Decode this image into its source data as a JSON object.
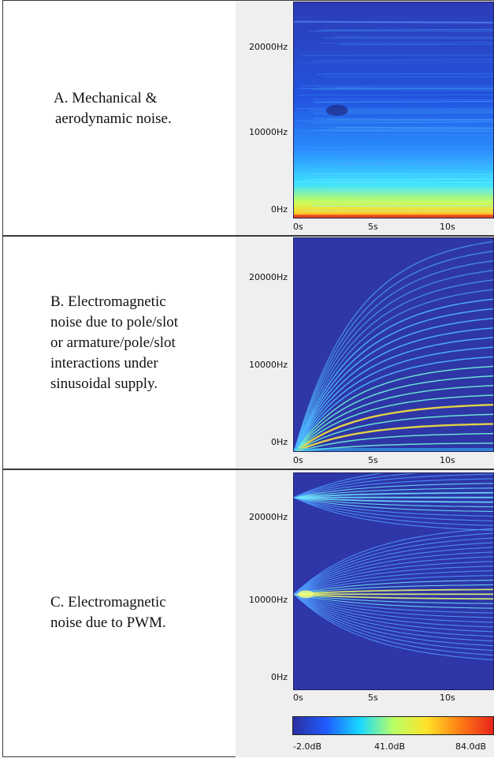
{
  "chart_data": [
    {
      "type": "heatmap",
      "label_text": [
        "A. Mechanical &",
        "aerodynamic noise."
      ],
      "yticks": [
        "20000Hz",
        "10000Hz",
        "0Hz"
      ],
      "xticks": [
        "0s",
        "5s",
        "10s"
      ],
      "ylim": [
        0,
        22500
      ],
      "xlim": [
        0,
        13.5
      ],
      "pattern": "broadband"
    },
    {
      "type": "heatmap",
      "label_text": [
        "B. Electromagnetic",
        "noise due to pole/slot",
        "or armature/pole/slot",
        "interactions under",
        "sinusoidal supply."
      ],
      "yticks": [
        "20000Hz",
        "10000Hz",
        "0Hz"
      ],
      "xticks": [
        "0s",
        "5s",
        "10s"
      ],
      "ylim": [
        0,
        22500
      ],
      "xlim": [
        0,
        13.5
      ],
      "pattern": "rising harmonic lines"
    },
    {
      "type": "heatmap",
      "label_text": [
        "C. Electromagnetic",
        "noise due to PWM."
      ],
      "yticks": [
        "20000Hz",
        "10000Hz",
        "0Hz"
      ],
      "xticks": [
        "0s",
        "5s",
        "10s"
      ],
      "ylim": [
        0,
        22500
      ],
      "xlim": [
        0,
        13.5
      ],
      "pattern": "sidebands around carrier"
    }
  ],
  "colorbar": {
    "ticks": [
      "-2.0dB",
      "41.0dB",
      "84.0dB"
    ],
    "colors": [
      "#2b2fa0",
      "#1f5bff",
      "#18d8ff",
      "#b8ff66",
      "#ffe22a",
      "#ff7d14",
      "#e8231b"
    ]
  }
}
